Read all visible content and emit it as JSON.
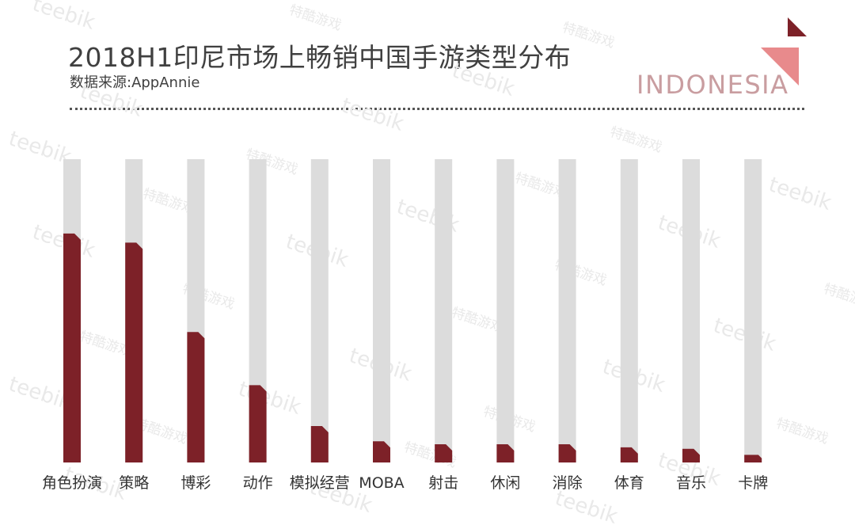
{
  "header": {
    "title": "2018H1印尼市场上畅销中国手游类型分布",
    "subtitle": "数据来源:AppAnnie",
    "brand_text": "INDONESIA"
  },
  "colors": {
    "bar": "#7d2128",
    "track": "#dcdcdc",
    "corner_dark": "#7d2128",
    "corner_light": "#e88a8c",
    "brand": "#c99da0"
  },
  "chart_data": {
    "type": "bar",
    "title": "2018H1印尼市场上畅销中国手游类型分布",
    "xlabel": "",
    "ylabel": "",
    "ylim": [
      0,
      100
    ],
    "grid": false,
    "categories": [
      "角色扮演",
      "策略",
      "博彩",
      "动作",
      "模拟经营",
      "MOBA",
      "射击",
      "休闲",
      "消除",
      "体育",
      "音乐",
      "卡牌"
    ],
    "values": [
      75.5,
      72.5,
      43,
      25.5,
      12,
      7,
      6,
      6,
      6,
      5,
      4.5,
      2.5
    ]
  },
  "watermarks": [
    "teebik",
    "特酷游戏"
  ]
}
